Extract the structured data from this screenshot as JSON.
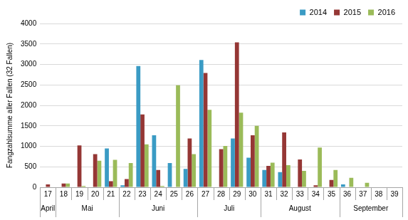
{
  "chart_data": {
    "type": "bar",
    "y_label": "Fangzahlsumme aller Fallen (32 Fallen)",
    "categories": [
      "17",
      "18",
      "19",
      "20",
      "21",
      "22",
      "23",
      "24",
      "25",
      "26",
      "27",
      "28",
      "29",
      "30",
      "31",
      "32",
      "33",
      "34",
      "35",
      "36",
      "37",
      "38",
      "39"
    ],
    "months": [
      "April",
      "Mai",
      "Mai",
      "Mai",
      "Mai",
      "Juni",
      "Juni",
      "Juni",
      "Juni",
      "Juni",
      "Juli",
      "Juli",
      "Juli",
      "Juli",
      "August",
      "August",
      "August",
      "August",
      "August",
      "September",
      "September",
      "September",
      "September"
    ],
    "series": [
      {
        "name": "2014",
        "color": "#3a9bc4",
        "values": [
          0,
          0,
          0,
          0,
          950,
          50,
          2960,
          1270,
          590,
          450,
          3110,
          0,
          1190,
          720,
          420,
          370,
          0,
          0,
          0,
          70,
          0,
          0,
          0
        ]
      },
      {
        "name": "2015",
        "color": "#953735",
        "values": [
          70,
          90,
          1020,
          810,
          150,
          200,
          1780,
          420,
          0,
          1190,
          2790,
          930,
          3540,
          1270,
          520,
          1340,
          680,
          50,
          180,
          0,
          0,
          0,
          0
        ]
      },
      {
        "name": "2016",
        "color": "#9bbb59",
        "values": [
          0,
          90,
          30,
          650,
          670,
          590,
          1050,
          30,
          2490,
          810,
          1890,
          1010,
          1820,
          1500,
          600,
          540,
          400,
          970,
          420,
          230,
          110,
          0,
          0
        ]
      }
    ],
    "ylim": [
      0,
      4000
    ],
    "yticks": [
      0,
      500,
      1000,
      1500,
      2000,
      2500,
      3000,
      3500,
      4000
    ],
    "grid": true,
    "legend": "top-right"
  }
}
